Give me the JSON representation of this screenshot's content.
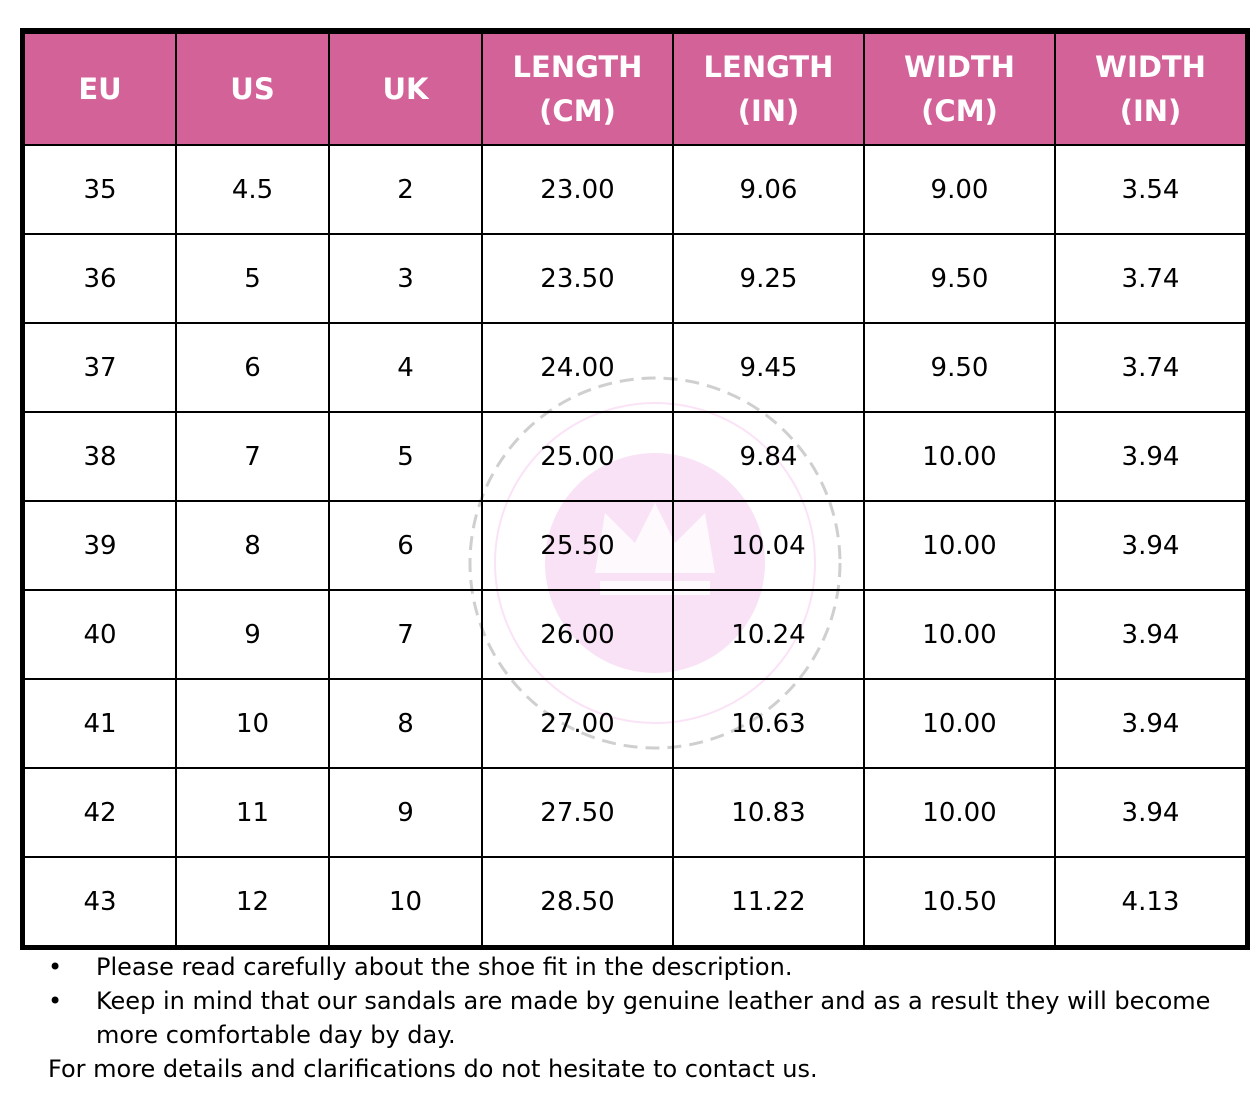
{
  "columns": [
    [
      "EU",
      ""
    ],
    [
      "US",
      ""
    ],
    [
      "UK",
      ""
    ],
    [
      "LENGTH",
      "(CM)"
    ],
    [
      "LENGTH",
      "(IN)"
    ],
    [
      "WIDTH",
      "(CM)"
    ],
    [
      "WIDTH",
      "(IN)"
    ]
  ],
  "rows": [
    [
      "35",
      "4.5",
      "2",
      "23.00",
      "9.06",
      "9.00",
      "3.54"
    ],
    [
      "36",
      "5",
      "3",
      "23.50",
      "9.25",
      "9.50",
      "3.74"
    ],
    [
      "37",
      "6",
      "4",
      "24.00",
      "9.45",
      "9.50",
      "3.74"
    ],
    [
      "38",
      "7",
      "5",
      "25.00",
      "9.84",
      "10.00",
      "3.94"
    ],
    [
      "39",
      "8",
      "6",
      "25.50",
      "10.04",
      "10.00",
      "3.94"
    ],
    [
      "40",
      "9",
      "7",
      "26.00",
      "10.24",
      "10.00",
      "3.94"
    ],
    [
      "41",
      "10",
      "8",
      "27.00",
      "10.63",
      "10.00",
      "3.94"
    ],
    [
      "42",
      "11",
      "9",
      "27.50",
      "10.83",
      "10.00",
      "3.94"
    ],
    [
      "43",
      "12",
      "10",
      "28.50",
      "11.22",
      "10.50",
      "4.13"
    ]
  ],
  "notes": {
    "bullet": "•",
    "items": [
      "Please read carefully about the shoe fit in the description.",
      "Keep in mind that our sandals are made by genuine leather and as a result they will become more comfortable day by day."
    ],
    "footer": "For more details and clarifications do not hesitate to contact us."
  },
  "colors": {
    "header_bg": "#D36299",
    "header_text": "#FFFFFF",
    "watermark": "#F7D6F2"
  },
  "watermark_icon": "crown-ornament-icon"
}
